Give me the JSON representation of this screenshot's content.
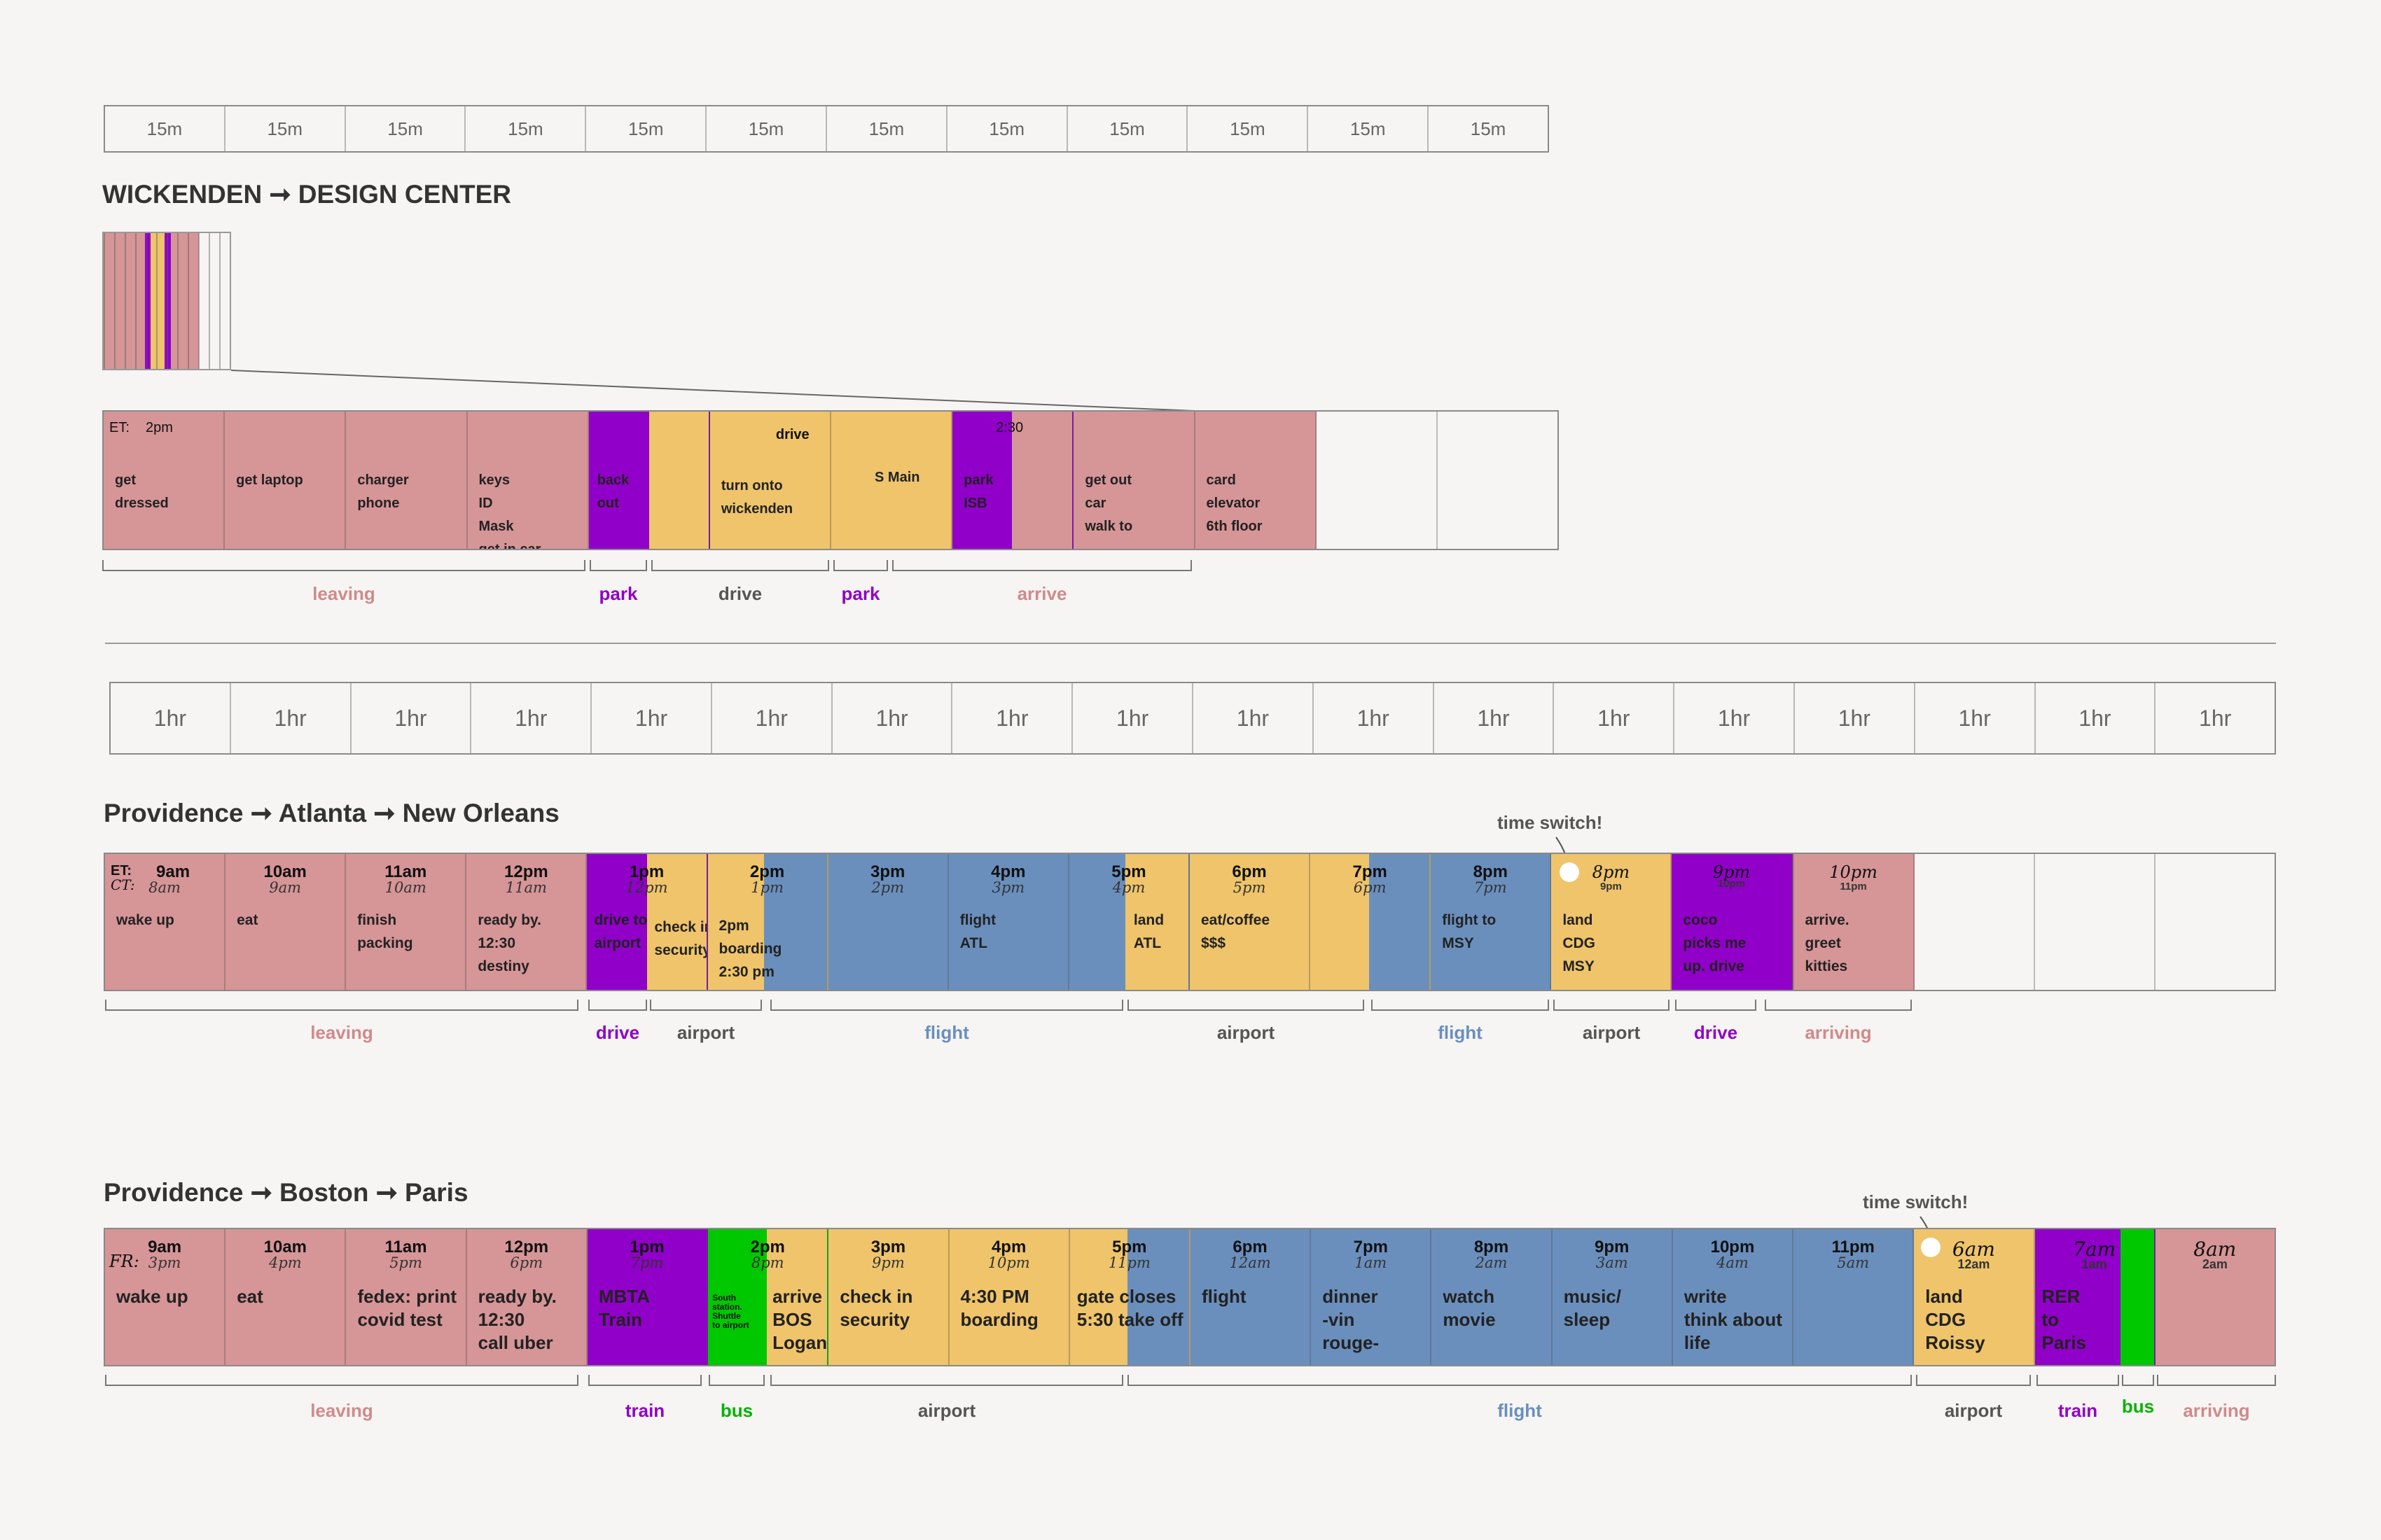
{
  "colors": {
    "leaving": "#d69597",
    "park": "#9000c8",
    "drive": "#efc46a",
    "flight": "#6a8fbd",
    "bus": "#00c800",
    "label_gray": "#555555"
  },
  "header15": [
    "15m",
    "15m",
    "15m",
    "15m",
    "15m",
    "15m",
    "15m",
    "15m",
    "15m",
    "15m",
    "15m",
    "15m"
  ],
  "header1hr": [
    "1hr",
    "1hr",
    "1hr",
    "1hr",
    "1hr",
    "1hr",
    "1hr",
    "1hr",
    "1hr",
    "1hr",
    "1hr",
    "1hr",
    "1hr",
    "1hr",
    "1hr",
    "1hr",
    "1hr",
    "1hr"
  ],
  "section1": {
    "title": "WICKENDEN ➞ DESIGN CENTER",
    "et_label": "ET:",
    "et_time": "2pm",
    "time_230": "2:30",
    "cells": [
      {
        "text": "get\ndressed"
      },
      {
        "text": "get laptop"
      },
      {
        "text": "charger\nphone"
      },
      {
        "text": "keys\nID\nMask\nget in car."
      },
      {
        "text": "back\nout"
      },
      {
        "text": "turn onto\nwickenden"
      },
      {
        "text": "S Main"
      },
      {
        "text": "park\nISB"
      },
      {
        "text": "get out\ncar\nwalk to"
      },
      {
        "text": "card\nelevator\n6th floor"
      },
      {
        "text": ""
      },
      {
        "text": ""
      }
    ],
    "drive_label": "drive",
    "brackets": [
      {
        "label": "leaving",
        "color": "#d08a8c"
      },
      {
        "label": "park",
        "color": "#9000c8"
      },
      {
        "label": "drive",
        "color": "#555555"
      },
      {
        "label": "park",
        "color": "#9000c8"
      },
      {
        "label": "arrive",
        "color": "#d08a8c"
      }
    ]
  },
  "section2": {
    "title": "Providence ➞ Atlanta ➞ New Orleans",
    "et_prefix": "ET:",
    "ct_prefix": "CT:",
    "note": "time switch!",
    "cells": [
      {
        "et": "9am",
        "lt": "8am",
        "text": "wake up"
      },
      {
        "et": "10am",
        "lt": "9am",
        "text": "eat"
      },
      {
        "et": "11am",
        "lt": "10am",
        "text": "finish\npacking"
      },
      {
        "et": "12pm",
        "lt": "11am",
        "text": "ready by.\n12:30\ndestiny"
      },
      {
        "et": "1pm",
        "lt": "12pm",
        "text": "drive to\nairport"
      },
      {
        "et": "2pm",
        "lt": "1pm",
        "text": "2pm\nboarding\n2:30 pm"
      },
      {
        "et": "3pm",
        "lt": "2pm",
        "text": ""
      },
      {
        "et": "4pm",
        "lt": "3pm",
        "text": "flight\nATL"
      },
      {
        "et": "5pm",
        "lt": "4pm",
        "text": ""
      },
      {
        "et": "6pm",
        "lt": "5pm",
        "text": "eat/coffee\n$$$"
      },
      {
        "et": "7pm",
        "lt": "6pm",
        "text": ""
      },
      {
        "et": "8pm",
        "lt": "7pm",
        "text": "flight to\nMSY"
      },
      {
        "et": "8pm",
        "lt": "9pm",
        "text": "land\nCDG\nMSY"
      },
      {
        "et": "9pm",
        "lt": "10pm",
        "text": "coco\npicks me\nup. drive"
      },
      {
        "et": "10pm",
        "lt": "11pm",
        "text": "arrive.\ngreet\nkitties"
      },
      {
        "et": "",
        "lt": "",
        "text": ""
      },
      {
        "et": "",
        "lt": "",
        "text": ""
      },
      {
        "et": "",
        "lt": "",
        "text": ""
      }
    ],
    "check_in": "check in\nsecurity",
    "land_atl": "land\nATL",
    "brackets": [
      {
        "label": "leaving",
        "color": "#d08a8c"
      },
      {
        "label": "drive",
        "color": "#9000c8"
      },
      {
        "label": "airport",
        "color": "#555555"
      },
      {
        "label": "flight",
        "color": "#6a8fbd"
      },
      {
        "label": "airport",
        "color": "#555555"
      },
      {
        "label": "flight",
        "color": "#6a8fbd"
      },
      {
        "label": "airport",
        "color": "#555555"
      },
      {
        "label": "drive",
        "color": "#9000c8"
      },
      {
        "label": "arriving",
        "color": "#d08a8c"
      }
    ]
  },
  "section3": {
    "title": "Providence ➞ Boston ➞ Paris",
    "fr_prefix": "FR:",
    "note": "time switch!",
    "cells": [
      {
        "et": "9am",
        "lt": "3pm",
        "text": "wake up"
      },
      {
        "et": "10am",
        "lt": "4pm",
        "text": "eat"
      },
      {
        "et": "11am",
        "lt": "5pm",
        "text": "fedex: print\ncovid test"
      },
      {
        "et": "12pm",
        "lt": "6pm",
        "text": "ready by.\n12:30\ncall uber"
      },
      {
        "et": "1pm",
        "lt": "7pm",
        "text": "MBTA\nTrain"
      },
      {
        "et": "2pm",
        "lt": "8pm",
        "text": ""
      },
      {
        "et": "3pm",
        "lt": "9pm",
        "text": "check in\nsecurity"
      },
      {
        "et": "4pm",
        "lt": "10pm",
        "text": "4:30 PM\nboarding"
      },
      {
        "et": "5pm",
        "lt": "11pm",
        "text": "gate closes\n5:30 take off"
      },
      {
        "et": "6pm",
        "lt": "12am",
        "text": "flight"
      },
      {
        "et": "7pm",
        "lt": "1am",
        "text": "dinner\n-vin\nrouge-"
      },
      {
        "et": "8pm",
        "lt": "2am",
        "text": "watch\nmovie"
      },
      {
        "et": "9pm",
        "lt": "3am",
        "text": "music/\nsleep"
      },
      {
        "et": "10pm",
        "lt": "4am",
        "text": "write\nthink about\nlife"
      },
      {
        "et": "11pm",
        "lt": "5am",
        "text": ""
      },
      {
        "et": "6am",
        "lt": "12am",
        "text": "land\nCDG\nRoissy"
      },
      {
        "et": "7am",
        "lt": "1am",
        "text": "RER\nto\nParis"
      },
      {
        "et": "8am",
        "lt": "2am",
        "text": ""
      }
    ],
    "bus_note": "South\nstation.\nShuttle\nto airport",
    "arrive_bos": "arrive\nBOS\nLogan",
    "brackets": [
      {
        "label": "leaving",
        "color": "#d08a8c"
      },
      {
        "label": "train",
        "color": "#9000c8"
      },
      {
        "label": "bus",
        "color": "#00b400"
      },
      {
        "label": "airport",
        "color": "#555555"
      },
      {
        "label": "flight",
        "color": "#6a8fbd"
      },
      {
        "label": "airport",
        "color": "#555555"
      },
      {
        "label": "train",
        "color": "#9000c8"
      },
      {
        "label": "bus",
        "color": "#00b400"
      },
      {
        "label": "arriving",
        "color": "#d08a8c"
      }
    ]
  }
}
